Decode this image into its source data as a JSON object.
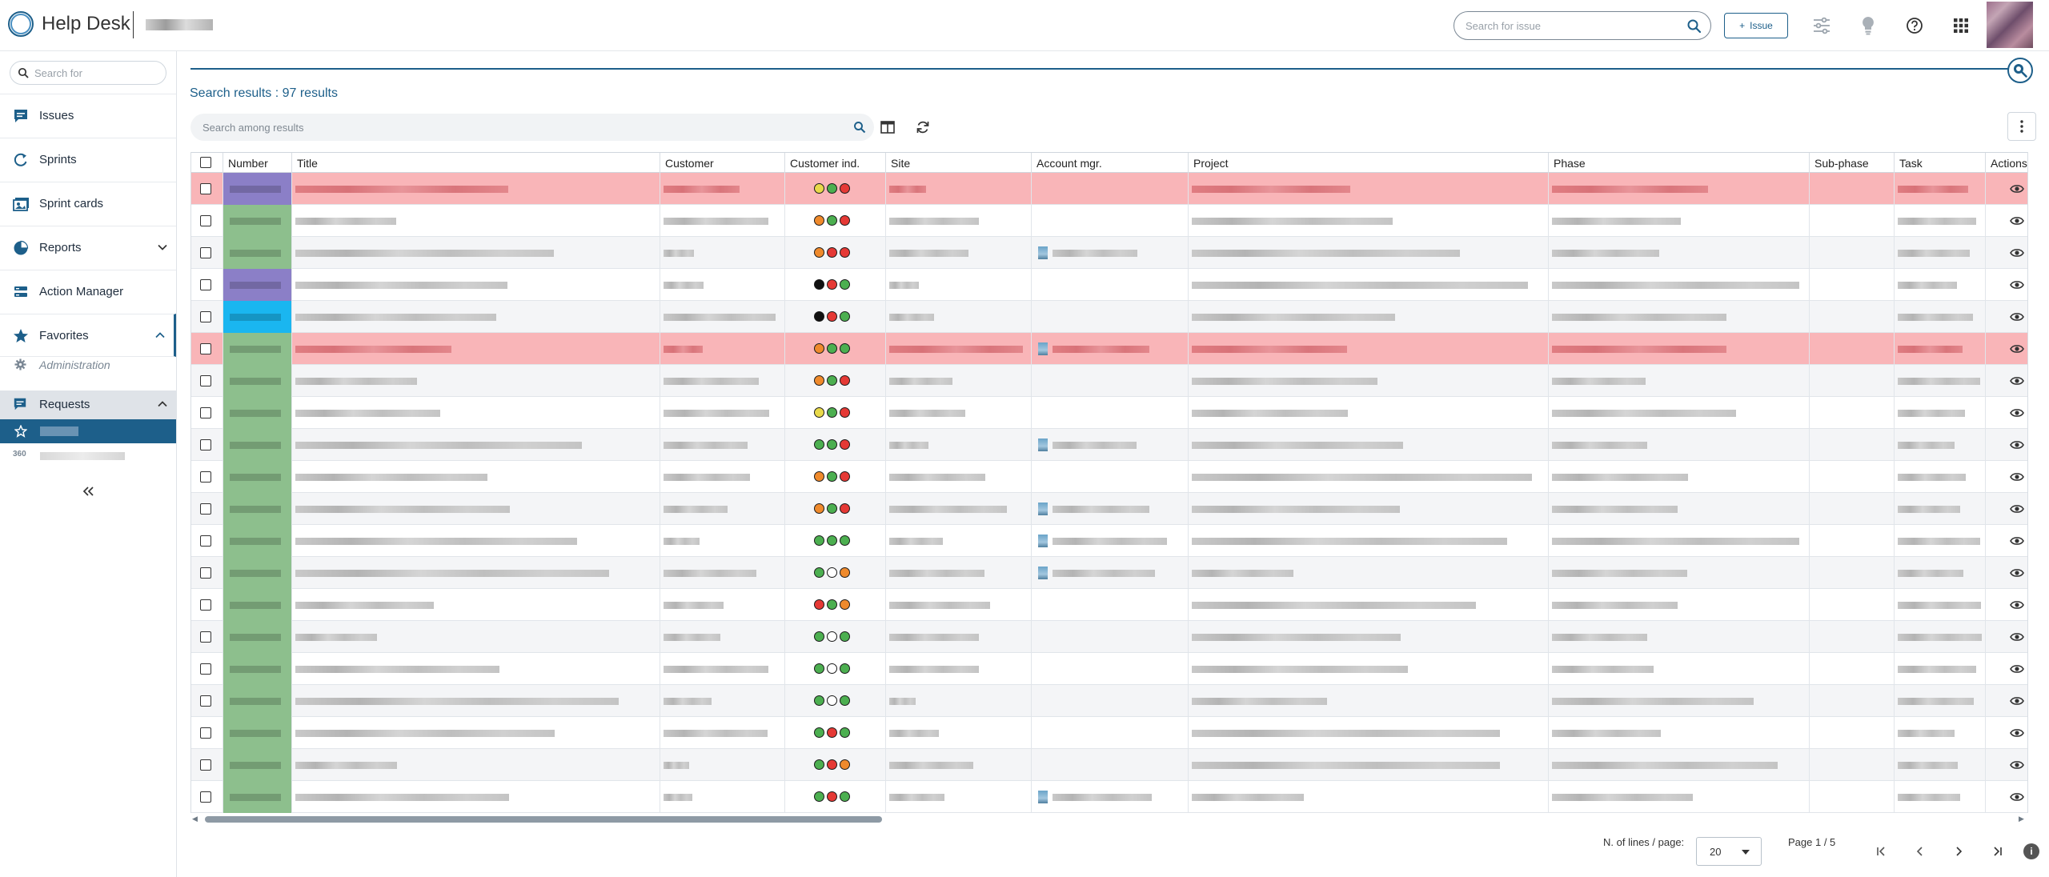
{
  "header": {
    "app_title": "Help Desk",
    "search_placeholder": "Search for issue",
    "issue_button": "Issue"
  },
  "sidebar": {
    "search_placeholder": "Search for",
    "items": [
      {
        "label": "Issues",
        "icon": "issues-icon"
      },
      {
        "label": "Sprints",
        "icon": "sprints-icon"
      },
      {
        "label": "Sprint cards",
        "icon": "sprint-cards-icon"
      },
      {
        "label": "Reports",
        "icon": "reports-icon"
      },
      {
        "label": "Action Manager",
        "icon": "action-manager-icon"
      },
      {
        "label": "Favorites",
        "icon": "star-icon"
      }
    ],
    "administration": "Administration",
    "requests": "Requests"
  },
  "main": {
    "results_title": "Search results : 97 results",
    "search_placeholder": "Search among results"
  },
  "table": {
    "columns": [
      "Number",
      "Title",
      "Customer",
      "Customer ind.",
      "Site",
      "Account mgr.",
      "Project",
      "Phase",
      "Sub-phase",
      "Task",
      "Actions"
    ]
  },
  "pager": {
    "lines_label": "N. of lines / page:",
    "lines_value": "20",
    "page_label": "Page 1 / 5"
  },
  "colors": {
    "accent": "#1d5f8a",
    "alert_row": "#f9b5b8",
    "number_green": "#8dbf8d",
    "number_purple": "#8b7fc7",
    "number_cyan": "#1ab6f0",
    "indicator_yellow": "#e8d94a",
    "indicator_green": "#4caf50",
    "indicator_red": "#e53935",
    "indicator_orange": "#ef8a2c",
    "indicator_black": "#111111",
    "indicator_white": "#ffffff"
  },
  "rows": [
    {
      "status": "alert",
      "number_color": "purple",
      "indicators": [
        "yellow",
        "green",
        "red"
      ],
      "account": false
    },
    {
      "status": "normal",
      "number_color": "green",
      "indicators": [
        "orange",
        "green",
        "red"
      ],
      "account": false
    },
    {
      "status": "normal",
      "number_color": "green",
      "indicators": [
        "orange",
        "red",
        "red"
      ],
      "account": true
    },
    {
      "status": "normal",
      "number_color": "purple",
      "indicators": [
        "black",
        "red",
        "green"
      ],
      "account": false
    },
    {
      "status": "normal",
      "number_color": "cyan",
      "indicators": [
        "black",
        "red",
        "green"
      ],
      "account": false
    },
    {
      "status": "alert",
      "number_color": "green",
      "indicators": [
        "orange",
        "green",
        "green"
      ],
      "account": true
    },
    {
      "status": "normal",
      "number_color": "green",
      "indicators": [
        "orange",
        "green",
        "red"
      ],
      "account": false
    },
    {
      "status": "normal",
      "number_color": "green",
      "indicators": [
        "yellow",
        "green",
        "red"
      ],
      "account": false
    },
    {
      "status": "normal",
      "number_color": "green",
      "indicators": [
        "green",
        "green",
        "red"
      ],
      "account": true
    },
    {
      "status": "normal",
      "number_color": "green",
      "indicators": [
        "orange",
        "green",
        "red"
      ],
      "account": false
    },
    {
      "status": "normal",
      "number_color": "green",
      "indicators": [
        "orange",
        "green",
        "red"
      ],
      "account": true
    },
    {
      "status": "normal",
      "number_color": "green",
      "indicators": [
        "green",
        "green",
        "green"
      ],
      "account": true
    },
    {
      "status": "normal",
      "number_color": "green",
      "indicators": [
        "green",
        "white",
        "orange"
      ],
      "account": true
    },
    {
      "status": "normal",
      "number_color": "green",
      "indicators": [
        "red",
        "green",
        "orange"
      ],
      "account": false
    },
    {
      "status": "normal",
      "number_color": "green",
      "indicators": [
        "green",
        "white",
        "green"
      ],
      "account": false
    },
    {
      "status": "normal",
      "number_color": "green",
      "indicators": [
        "green",
        "white",
        "green"
      ],
      "account": false
    },
    {
      "status": "normal",
      "number_color": "green",
      "indicators": [
        "green",
        "white",
        "green"
      ],
      "account": false
    },
    {
      "status": "normal",
      "number_color": "green",
      "indicators": [
        "green",
        "red",
        "green"
      ],
      "account": false
    },
    {
      "status": "normal",
      "number_color": "green",
      "indicators": [
        "green",
        "red",
        "orange"
      ],
      "account": false
    },
    {
      "status": "normal",
      "number_color": "green",
      "indicators": [
        "green",
        "red",
        "green"
      ],
      "account": true
    }
  ]
}
